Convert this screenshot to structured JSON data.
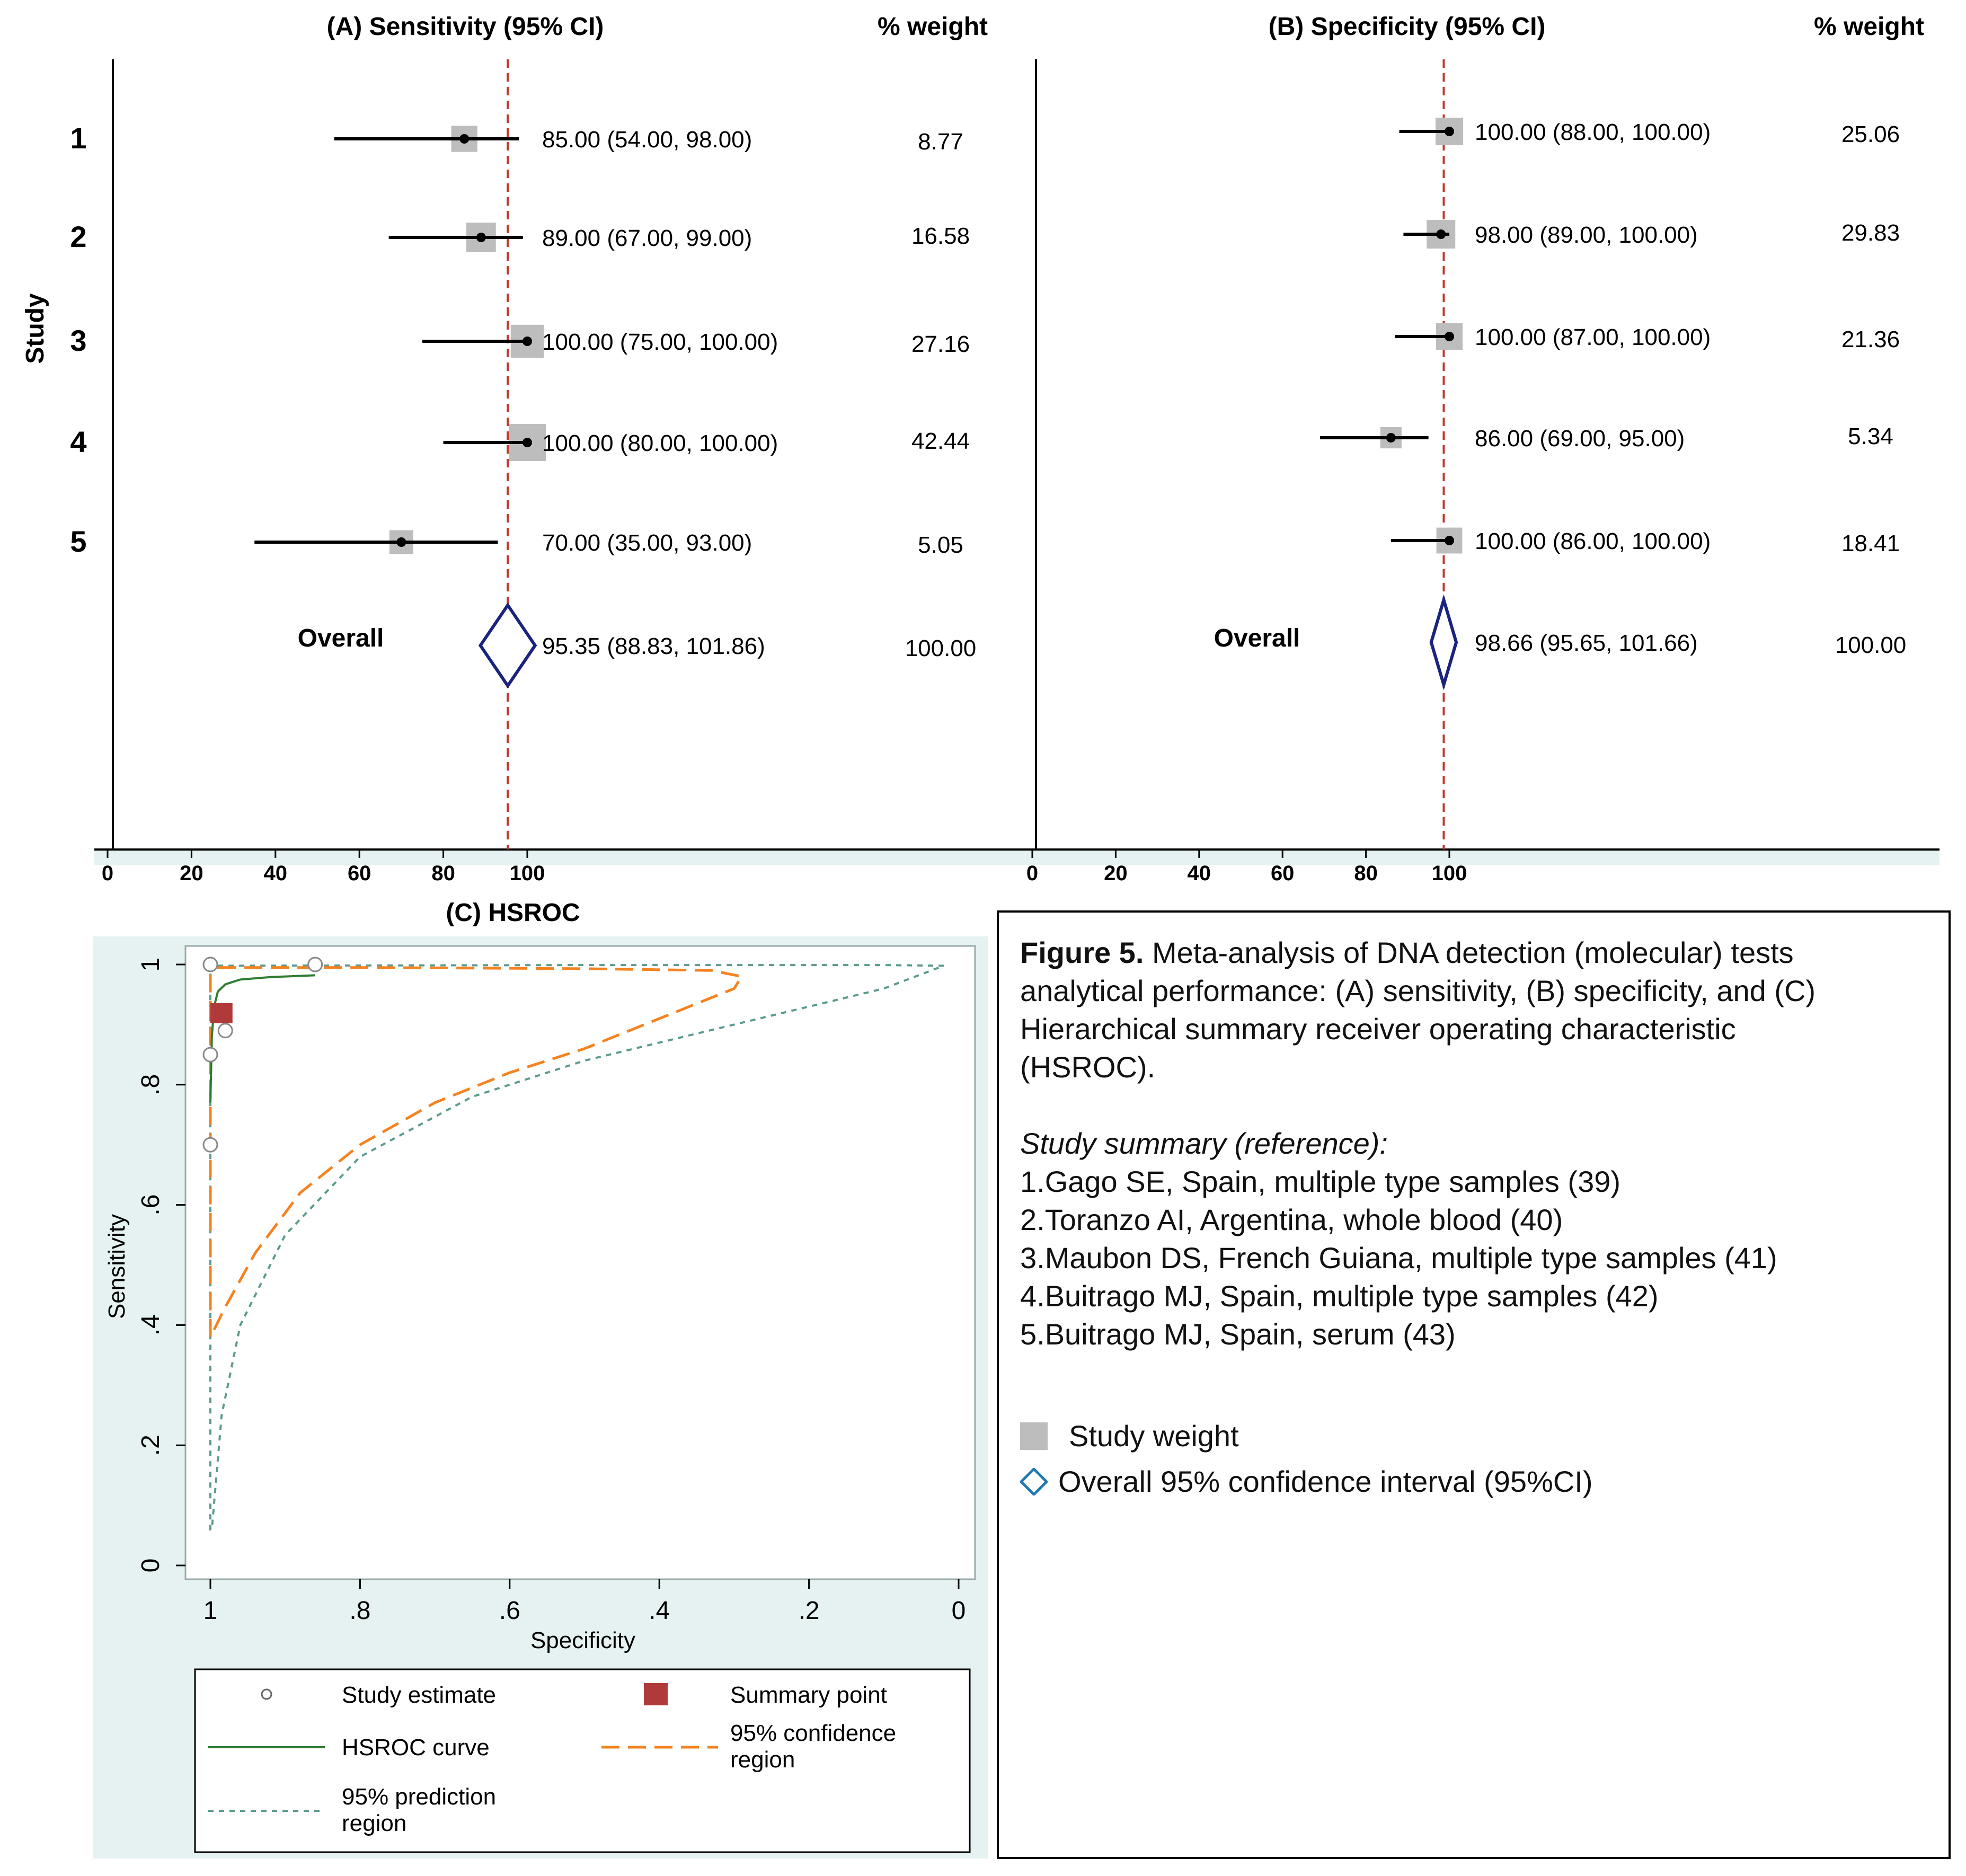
{
  "panel_a": {
    "title": "(A) Sensitivity (95% CI)",
    "weight_header": "% weight",
    "y_axis_label": "Study",
    "overall_label": "Overall"
  },
  "panel_b": {
    "title": "(B) Specificity (95% CI)",
    "weight_header": "% weight",
    "overall_label": "Overall"
  },
  "panel_c": {
    "title": "(C) HSROC",
    "x_label": "Specificity",
    "y_label": "Sensitivity",
    "legend": {
      "study_estimate": "Study estimate",
      "summary_point": "Summary point",
      "hsroc_curve": "HSROC curve",
      "conf_region_l1": "95% confidence",
      "conf_region_l2": "region",
      "pred_region_l1": "95% prediction",
      "pred_region_l2": "region"
    }
  },
  "caption": {
    "fig_label": "Figure  5.",
    "line1": " Meta-analysis of DNA detection (molecular)  tests",
    "line2": "analytical performance: (A) sensitivity, (B) specificity, and (C)",
    "line3": "Hierarchical  summary  receiver operating characteristic",
    "line4": "(HSROC).",
    "summary_heading": "Study summary (reference):",
    "refs": [
      "1.Gago SE, Spain, multiple  type samples (39)",
      "2.Toranzo AI, Argentina,  whole blood (40)",
      "3.Maubon DS, French Guiana,  multiple  type samples (41)",
      "4.Buitrago MJ, Spain, multiple  type samples (42)",
      "5.Buitrago MJ, Spain, serum (43)"
    ],
    "legend_weight": "Study weight",
    "legend_ci": "Overall  95% confidence interval (95%CI)"
  },
  "colors": {
    "ref_line": "#c0392b",
    "diamond": "#1a237e",
    "weight_box": "#bdbdbd",
    "hsroc": "#2e7d32",
    "confidence": "#f5821f",
    "prediction": "#5b9a8f",
    "summary": "#b03a3a",
    "caption_diamond": "#1f78b4",
    "axis_band": "#e6f2f2"
  },
  "chart_data": [
    {
      "type": "forest",
      "title": "(A) Sensitivity (95% CI)",
      "xlim": [
        0,
        100
      ],
      "xticks": [
        0,
        20,
        40,
        60,
        80,
        100
      ],
      "reference_line": 95.35,
      "studies": [
        {
          "id": "1",
          "estimate": 85.0,
          "lower": 54.0,
          "upper": 98.0,
          "ci_text": "85.00 (54.00, 98.00)",
          "weight": 8.77,
          "weight_text": "8.77"
        },
        {
          "id": "2",
          "estimate": 89.0,
          "lower": 67.0,
          "upper": 99.0,
          "ci_text": "89.00 (67.00, 99.00)",
          "weight": 16.58,
          "weight_text": "16.58"
        },
        {
          "id": "3",
          "estimate": 100.0,
          "lower": 75.0,
          "upper": 100.0,
          "ci_text": "100.00 (75.00, 100.00)",
          "weight": 27.16,
          "weight_text": "27.16"
        },
        {
          "id": "4",
          "estimate": 100.0,
          "lower": 80.0,
          "upper": 100.0,
          "ci_text": "100.00 (80.00, 100.00)",
          "weight": 42.44,
          "weight_text": "42.44"
        },
        {
          "id": "5",
          "estimate": 70.0,
          "lower": 35.0,
          "upper": 93.0,
          "ci_text": "70.00 (35.00, 93.00)",
          "weight": 5.05,
          "weight_text": "5.05"
        }
      ],
      "overall": {
        "estimate": 95.35,
        "lower": 88.83,
        "upper": 101.86,
        "ci_text": "95.35 (88.83, 101.86)",
        "weight_text": "100.00"
      }
    },
    {
      "type": "forest",
      "title": "(B) Specificity (95% CI)",
      "xlim": [
        0,
        100
      ],
      "xticks": [
        0,
        20,
        40,
        60,
        80,
        100
      ],
      "reference_line": 98.66,
      "studies": [
        {
          "id": "1",
          "estimate": 100.0,
          "lower": 88.0,
          "upper": 100.0,
          "ci_text": "100.00 (88.00, 100.00)",
          "weight": 25.06,
          "weight_text": "25.06"
        },
        {
          "id": "2",
          "estimate": 98.0,
          "lower": 89.0,
          "upper": 100.0,
          "ci_text": "98.00 (89.00, 100.00)",
          "weight": 29.83,
          "weight_text": "29.83"
        },
        {
          "id": "3",
          "estimate": 100.0,
          "lower": 87.0,
          "upper": 100.0,
          "ci_text": "100.00 (87.00, 100.00)",
          "weight": 21.36,
          "weight_text": "21.36"
        },
        {
          "id": "4",
          "estimate": 86.0,
          "lower": 69.0,
          "upper": 95.0,
          "ci_text": "86.00 (69.00, 95.00)",
          "weight": 5.34,
          "weight_text": "5.34"
        },
        {
          "id": "5",
          "estimate": 100.0,
          "lower": 86.0,
          "upper": 100.0,
          "ci_text": "100.00 (86.00, 100.00)",
          "weight": 18.41,
          "weight_text": "18.41"
        }
      ],
      "overall": {
        "estimate": 98.66,
        "lower": 95.65,
        "upper": 101.66,
        "ci_text": "98.66 (95.65, 101.66)",
        "weight_text": "100.00"
      }
    },
    {
      "type": "scatter",
      "title": "(C) HSROC",
      "xlabel": "Specificity",
      "ylabel": "Sensitivity",
      "x_reversed": true,
      "xlim": [
        1,
        0
      ],
      "ylim": [
        0,
        1
      ],
      "xticks": [
        1,
        0.8,
        0.6,
        0.4,
        0.2,
        0
      ],
      "xtick_labels": [
        "1",
        ".8",
        ".6",
        ".4",
        ".2",
        "0"
      ],
      "yticks": [
        0,
        0.2,
        0.4,
        0.6,
        0.8,
        1
      ],
      "ytick_labels": [
        "0",
        ".2",
        ".4",
        ".6",
        ".8",
        "1"
      ],
      "study_estimates": [
        {
          "spec": 1.0,
          "sens": 0.85
        },
        {
          "spec": 0.98,
          "sens": 0.89
        },
        {
          "spec": 1.0,
          "sens": 1.0
        },
        {
          "spec": 0.86,
          "sens": 1.0
        },
        {
          "spec": 1.0,
          "sens": 0.7
        }
      ],
      "summary_point": {
        "spec": 0.986,
        "sens": 0.92
      },
      "hsroc_curve": [
        {
          "spec": 1.0,
          "sens": 0.77
        },
        {
          "spec": 0.998,
          "sens": 0.88
        },
        {
          "spec": 0.995,
          "sens": 0.93
        },
        {
          "spec": 0.99,
          "sens": 0.955
        },
        {
          "spec": 0.98,
          "sens": 0.967
        },
        {
          "spec": 0.96,
          "sens": 0.975
        },
        {
          "spec": 0.92,
          "sens": 0.979
        },
        {
          "spec": 0.88,
          "sens": 0.981
        },
        {
          "spec": 0.86,
          "sens": 0.982
        }
      ],
      "confidence_region": [
        {
          "spec": 0.99,
          "sens": 0.995
        },
        {
          "spec": 0.8,
          "sens": 0.995
        },
        {
          "spec": 0.5,
          "sens": 0.993
        },
        {
          "spec": 0.33,
          "sens": 0.99
        },
        {
          "spec": 0.29,
          "sens": 0.98
        },
        {
          "spec": 0.3,
          "sens": 0.96
        },
        {
          "spec": 0.4,
          "sens": 0.91
        },
        {
          "spec": 0.5,
          "sens": 0.86
        },
        {
          "spec": 0.6,
          "sens": 0.82
        },
        {
          "spec": 0.7,
          "sens": 0.77
        },
        {
          "spec": 0.8,
          "sens": 0.7
        },
        {
          "spec": 0.88,
          "sens": 0.62
        },
        {
          "spec": 0.94,
          "sens": 0.52
        },
        {
          "spec": 0.98,
          "sens": 0.43
        },
        {
          "spec": 1.0,
          "sens": 0.38
        },
        {
          "spec": 1.0,
          "sens": 0.995
        },
        {
          "spec": 0.99,
          "sens": 0.995
        }
      ],
      "prediction_region": [
        {
          "spec": 0.99,
          "sens": 0.998
        },
        {
          "spec": 0.5,
          "sens": 0.999
        },
        {
          "spec": 0.1,
          "sens": 0.999
        },
        {
          "spec": 0.02,
          "sens": 0.998
        },
        {
          "spec": 0.1,
          "sens": 0.96
        },
        {
          "spec": 0.3,
          "sens": 0.9
        },
        {
          "spec": 0.5,
          "sens": 0.84
        },
        {
          "spec": 0.65,
          "sens": 0.78
        },
        {
          "spec": 0.8,
          "sens": 0.68
        },
        {
          "spec": 0.9,
          "sens": 0.55
        },
        {
          "spec": 0.96,
          "sens": 0.4
        },
        {
          "spec": 0.985,
          "sens": 0.25
        },
        {
          "spec": 0.998,
          "sens": 0.06
        },
        {
          "spec": 1.0,
          "sens": 0.06
        },
        {
          "spec": 1.0,
          "sens": 0.998
        },
        {
          "spec": 0.99,
          "sens": 0.998
        }
      ]
    }
  ]
}
